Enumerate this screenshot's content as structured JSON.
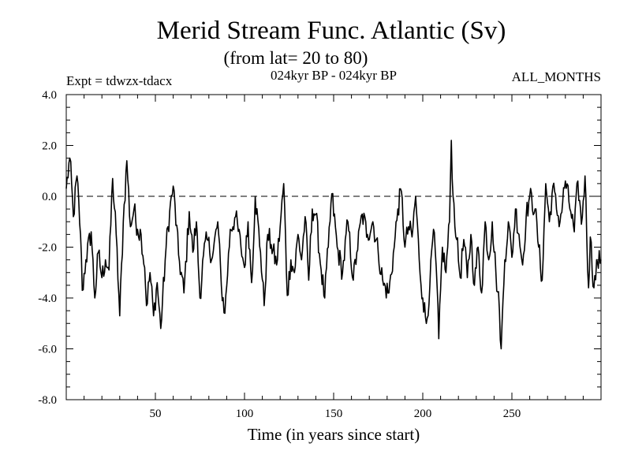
{
  "chart_data": {
    "type": "line",
    "title": "Merid Stream Func. Atlantic (Sv)",
    "subtitle": "(from lat= 20 to 80)",
    "left_label": "Expt = tdwzx-tdacx",
    "center_label": "024kyr BP - 024kyr BP",
    "right_label": "ALL_MONTHS",
    "xlabel": "Time (in years since start)",
    "ylabel": "",
    "xlim": [
      0,
      300
    ],
    "ylim": [
      -8,
      4
    ],
    "x_ticks": [
      50,
      100,
      150,
      200,
      250
    ],
    "x_tick_labels": [
      "50",
      "100",
      "150",
      "200",
      "250"
    ],
    "y_ticks": [
      -8,
      -6,
      -4,
      -2,
      0,
      2,
      4
    ],
    "y_tick_labels": [
      "-8.0",
      "-6.0",
      "-4.0",
      "-2.0",
      "0.0",
      "2.0",
      "4.0"
    ],
    "reference_line": 0,
    "anchors": [
      [
        0,
        0.3
      ],
      [
        2,
        1.5
      ],
      [
        4,
        -0.8
      ],
      [
        6,
        0.8
      ],
      [
        8,
        -1.5
      ],
      [
        9,
        -3.7
      ],
      [
        11,
        -2.5
      ],
      [
        14,
        -1.4
      ],
      [
        16,
        -4.0
      ],
      [
        18,
        -2.2
      ],
      [
        20,
        -3.2
      ],
      [
        22,
        -2.5
      ],
      [
        24,
        -2.9
      ],
      [
        26,
        0.7
      ],
      [
        28,
        -1.5
      ],
      [
        30,
        -4.7
      ],
      [
        32,
        -1.0
      ],
      [
        34,
        1.4
      ],
      [
        36,
        -1.2
      ],
      [
        38,
        -0.5
      ],
      [
        40,
        -1.3
      ],
      [
        42,
        -1.5
      ],
      [
        44,
        -2.8
      ],
      [
        45,
        -4.3
      ],
      [
        47,
        -3.0
      ],
      [
        49,
        -4.7
      ],
      [
        51,
        -3.4
      ],
      [
        53,
        -5.2
      ],
      [
        56,
        -2.0
      ],
      [
        58,
        -0.6
      ],
      [
        60,
        0.4
      ],
      [
        63,
        -2.3
      ],
      [
        66,
        -3.8
      ],
      [
        69,
        -0.6
      ],
      [
        71,
        -2.2
      ],
      [
        73,
        -1.0
      ],
      [
        75,
        -4.0
      ],
      [
        77,
        -2.3
      ],
      [
        79,
        -1.7
      ],
      [
        82,
        -2.4
      ],
      [
        85,
        -1.0
      ],
      [
        87,
        -3.5
      ],
      [
        89,
        -4.6
      ],
      [
        92,
        -1.3
      ],
      [
        95,
        -0.8
      ],
      [
        98,
        -2.0
      ],
      [
        100,
        -2.8
      ],
      [
        102,
        -1.0
      ],
      [
        104,
        -3.4
      ],
      [
        106,
        0.0
      ],
      [
        109,
        -2.2
      ],
      [
        111,
        -4.3
      ],
      [
        113,
        -1.5
      ],
      [
        115,
        -1.9
      ],
      [
        118,
        -2.7
      ],
      [
        120,
        -1.2
      ],
      [
        122,
        0.5
      ],
      [
        124,
        -3.9
      ],
      [
        126,
        -2.5
      ],
      [
        128,
        -3.0
      ],
      [
        130,
        -1.5
      ],
      [
        132,
        -2.5
      ],
      [
        134,
        -0.8
      ],
      [
        136,
        -3.3
      ],
      [
        138,
        -0.5
      ],
      [
        140,
        -0.7
      ],
      [
        143,
        -2.9
      ],
      [
        145,
        -4.0
      ],
      [
        147,
        -2.0
      ],
      [
        149,
        0.1
      ],
      [
        152,
        -2.0
      ],
      [
        155,
        -3.0
      ],
      [
        158,
        -1.0
      ],
      [
        161,
        -3.3
      ],
      [
        163,
        -2.2
      ],
      [
        166,
        -0.7
      ],
      [
        169,
        -1.5
      ],
      [
        172,
        -1.0
      ],
      [
        175,
        -2.2
      ],
      [
        178,
        -3.5
      ],
      [
        181,
        -3.8
      ],
      [
        184,
        -2.0
      ],
      [
        186,
        -0.5
      ],
      [
        188,
        0.2
      ],
      [
        190,
        -2.0
      ],
      [
        192,
        -1.2
      ],
      [
        194,
        -1.6
      ],
      [
        196,
        0.0
      ],
      [
        198,
        -2.5
      ],
      [
        200,
        -4.0
      ],
      [
        202,
        -5.0
      ],
      [
        204,
        -3.5
      ],
      [
        206,
        -1.3
      ],
      [
        208,
        -3.5
      ],
      [
        209,
        -5.6
      ],
      [
        211,
        -2.0
      ],
      [
        213,
        -3.0
      ],
      [
        215,
        -1.0
      ],
      [
        216,
        2.2
      ],
      [
        217,
        0.0
      ],
      [
        219,
        -1.7
      ],
      [
        221,
        -3.2
      ],
      [
        223,
        -1.7
      ],
      [
        225,
        -3.2
      ],
      [
        227,
        -1.5
      ],
      [
        229,
        -3.5
      ],
      [
        231,
        -2.0
      ],
      [
        233,
        -3.8
      ],
      [
        235,
        -1.0
      ],
      [
        237,
        -2.5
      ],
      [
        239,
        -1.0
      ],
      [
        241,
        -3.0
      ],
      [
        243,
        -4.5
      ],
      [
        244,
        -6.0
      ],
      [
        246,
        -2.5
      ],
      [
        248,
        -1.0
      ],
      [
        250,
        -2.4
      ],
      [
        252,
        -0.5
      ],
      [
        254,
        -1.5
      ],
      [
        256,
        -2.7
      ],
      [
        258,
        -0.8
      ],
      [
        260,
        0.0
      ],
      [
        263,
        -0.5
      ],
      [
        265,
        -2.0
      ],
      [
        267,
        -3.3
      ],
      [
        269,
        0.5
      ],
      [
        271,
        -1.0
      ],
      [
        273,
        0.4
      ],
      [
        275,
        -0.5
      ],
      [
        277,
        -1.0
      ],
      [
        280,
        0.6
      ],
      [
        283,
        -0.6
      ],
      [
        285,
        -1.4
      ],
      [
        287,
        0.6
      ],
      [
        289,
        -1.1
      ],
      [
        291,
        0.8
      ],
      [
        293,
        -3.6
      ],
      [
        294,
        -1.6
      ],
      [
        296,
        -3.6
      ],
      [
        298,
        -2.6
      ],
      [
        300,
        -2.5
      ]
    ]
  }
}
